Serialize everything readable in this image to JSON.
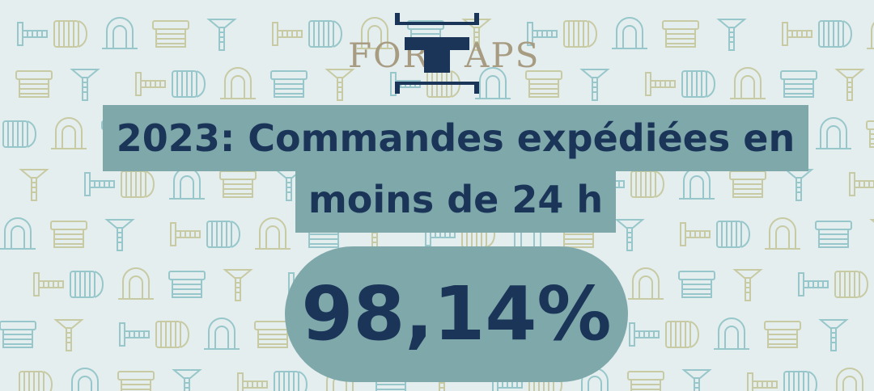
{
  "logo": {
    "left_text": "FOR",
    "right_text": "APS"
  },
  "headline": {
    "line1": "2023: Commandes expédiées en",
    "line2": "moins de 24 h"
  },
  "stat": {
    "value": "98,14%"
  },
  "colors": {
    "background": "#e4eeef",
    "band": "#7fa8ab",
    "text": "#1b3558",
    "logo_text": "#a79b82",
    "pattern_teal": "#8fc3c6",
    "pattern_olive": "#c4c79b"
  },
  "pattern": {
    "icons": [
      "screw-icon",
      "end-cap-icon",
      "pipe-clip-icon",
      "tube-insert-icon",
      "leveling-foot-icon"
    ]
  }
}
